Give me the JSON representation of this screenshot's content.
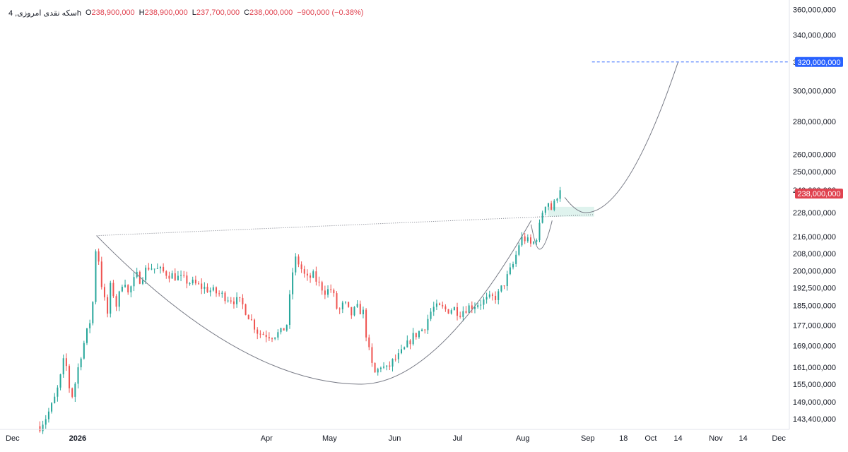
{
  "legend": {
    "symbol": "سکه نقدی امروزی, 4h",
    "open_label": "O",
    "open_value": "238,900,000",
    "high_label": "H",
    "high_value": "238,900,000",
    "low_label": "L",
    "low_value": "237,700,000",
    "close_label": "C",
    "close_value": "238,000,000",
    "change": "−900,000 (−0.38%)"
  },
  "colors": {
    "up": "#26a69a",
    "down": "#ef5350",
    "price_badge": "#e0424f",
    "target_badge": "#2962ff",
    "zone_fill": "#dff3ee",
    "pattern_line": "#787b86"
  },
  "chart_data": {
    "type": "candlestick",
    "title": "",
    "y_scale": "log",
    "ylim": [
      140000000,
      365000000
    ],
    "y_ticks": [
      "360,000,000",
      "340,000,000",
      "320,000,000",
      "300,000,000",
      "280,000,000",
      "260,000,000",
      "250,000,000",
      "240,000,000",
      "228,000,000",
      "216,000,000",
      "208,000,000",
      "200,000,000",
      "192,500,000",
      "185,000,000",
      "177,000,000",
      "169,000,000",
      "161,000,000",
      "155,000,000",
      "149,000,000",
      "143,400,000"
    ],
    "y_tick_values": [
      360000000,
      340000000,
      320000000,
      300000000,
      280000000,
      260000000,
      250000000,
      240000000,
      228000000,
      216000000,
      208000000,
      200000000,
      192500000,
      185000000,
      177000000,
      169000000,
      161000000,
      155000000,
      149000000,
      143400000
    ],
    "x_ticks": [
      {
        "label": "Dec",
        "date": "2025-12-01",
        "bold": false
      },
      {
        "label": "2026",
        "date": "2026-01-01",
        "bold": true
      },
      {
        "label": "Apr",
        "date": "2026-04-01",
        "bold": false
      },
      {
        "label": "May",
        "date": "2026-05-01",
        "bold": false
      },
      {
        "label": "Jun",
        "date": "2026-06-01",
        "bold": false
      },
      {
        "label": "Jul",
        "date": "2026-07-01",
        "bold": false
      },
      {
        "label": "Aug",
        "date": "2026-08-01",
        "bold": false
      },
      {
        "label": "Sep",
        "date": "2026-09-01",
        "bold": false
      },
      {
        "label": "18",
        "date": "2026-09-18",
        "bold": false
      },
      {
        "label": "Oct",
        "date": "2026-10-01",
        "bold": false
      },
      {
        "label": "14",
        "date": "2026-10-14",
        "bold": false
      },
      {
        "label": "Nov",
        "date": "2026-11-01",
        "bold": false
      },
      {
        "label": "14",
        "date": "2026-11-14",
        "bold": false
      },
      {
        "label": "Dec",
        "date": "2026-12-01",
        "bold": false
      }
    ],
    "price_path": [
      [
        "2025-12-14",
        141000000
      ],
      [
        "2025-12-17",
        144000000
      ],
      [
        "2025-12-20",
        148000000
      ],
      [
        "2025-12-22",
        152000000
      ],
      [
        "2025-12-24",
        158000000
      ],
      [
        "2025-12-26",
        166000000
      ],
      [
        "2025-12-27",
        158000000
      ],
      [
        "2025-12-29",
        150000000
      ],
      [
        "2025-12-31",
        156000000
      ],
      [
        "2026-01-02",
        164000000
      ],
      [
        "2026-01-04",
        170000000
      ],
      [
        "2026-01-06",
        176000000
      ],
      [
        "2026-01-08",
        182000000
      ],
      [
        "2026-01-09",
        204000000
      ],
      [
        "2026-01-10",
        214000000
      ],
      [
        "2026-01-12",
        196000000
      ],
      [
        "2026-01-14",
        186000000
      ],
      [
        "2026-01-15",
        180000000
      ],
      [
        "2026-01-17",
        196000000
      ],
      [
        "2026-01-19",
        184000000
      ],
      [
        "2026-01-21",
        190000000
      ],
      [
        "2026-01-23",
        198000000
      ],
      [
        "2026-01-25",
        190000000
      ],
      [
        "2026-01-27",
        194000000
      ],
      [
        "2026-01-29",
        198000000
      ],
      [
        "2026-01-31",
        196000000
      ],
      [
        "2026-02-02",
        200000000
      ],
      [
        "2026-02-04",
        202000000
      ],
      [
        "2026-03-20",
        186000000
      ],
      [
        "2026-03-24",
        180000000
      ],
      [
        "2026-03-28",
        174000000
      ],
      [
        "2026-04-03",
        173000000
      ],
      [
        "2026-04-08",
        174000000
      ],
      [
        "2026-04-11",
        178000000
      ],
      [
        "2026-04-13",
        198000000
      ],
      [
        "2026-04-15",
        206000000
      ],
      [
        "2026-04-18",
        200000000
      ],
      [
        "2026-04-20",
        196000000
      ],
      [
        "2026-04-23",
        198000000
      ],
      [
        "2026-04-26",
        194000000
      ],
      [
        "2026-04-29",
        191000000
      ],
      [
        "2026-05-02",
        192000000
      ],
      [
        "2026-05-05",
        182000000
      ],
      [
        "2026-05-08",
        186000000
      ],
      [
        "2026-05-11",
        181000000
      ],
      [
        "2026-05-14",
        184000000
      ],
      [
        "2026-05-17",
        182000000
      ],
      [
        "2026-05-19",
        170000000
      ],
      [
        "2026-05-21",
        162000000
      ],
      [
        "2026-05-23",
        158000000
      ],
      [
        "2026-05-25",
        162000000
      ],
      [
        "2026-05-28",
        160000000
      ],
      [
        "2026-05-31",
        163000000
      ],
      [
        "2026-06-03",
        165000000
      ],
      [
        "2026-06-06",
        168000000
      ],
      [
        "2026-06-09",
        172000000
      ],
      [
        "2026-06-12",
        174000000
      ],
      [
        "2026-06-15",
        176000000
      ],
      [
        "2026-06-19",
        184000000
      ],
      [
        "2026-06-23",
        184000000
      ],
      [
        "2026-06-26",
        183000000
      ],
      [
        "2026-06-29",
        184000000
      ],
      [
        "2026-07-02",
        182000000
      ],
      [
        "2026-07-05",
        184000000
      ],
      [
        "2026-07-08",
        185000000
      ],
      [
        "2026-07-11",
        186000000
      ],
      [
        "2026-07-14",
        187000000
      ],
      [
        "2026-07-17",
        188000000
      ],
      [
        "2026-07-20",
        189000000
      ],
      [
        "2026-07-24",
        196000000
      ],
      [
        "2026-07-28",
        204000000
      ],
      [
        "2026-07-30",
        212000000
      ],
      [
        "2026-08-01",
        216000000
      ],
      [
        "2026-08-03",
        214000000
      ],
      [
        "2026-08-05",
        212000000
      ],
      [
        "2026-08-07",
        214000000
      ],
      [
        "2026-08-09",
        221000000
      ],
      [
        "2026-08-11",
        232000000
      ],
      [
        "2026-08-13",
        234000000
      ],
      [
        "2026-08-15",
        229000000
      ],
      [
        "2026-08-17",
        236000000
      ],
      [
        "2026-08-19",
        242000000
      ],
      [
        "2026-08-20",
        238000000
      ]
    ],
    "candle_range_start": "2025-12-14",
    "candle_range_end": "2026-08-20",
    "last_price": 238000000,
    "last_price_label": "238,000,000",
    "target_price": 320000000,
    "target_price_label": "320,000,000",
    "neckline": {
      "start": [
        "2026-01-10",
        216500000
      ],
      "end": [
        "2026-09-04",
        227000000
      ]
    },
    "cup_curve": {
      "start": [
        "2026-01-10",
        216500000
      ],
      "bottom": [
        "2026-05-16",
        155000000
      ],
      "end": [
        "2026-08-05",
        224000000
      ]
    },
    "handle_curve": {
      "start": [
        "2026-08-05",
        222000000
      ],
      "bottom": [
        "2026-08-09",
        210000000
      ],
      "end": [
        "2026-08-15",
        224000000
      ]
    },
    "projection_curve": {
      "start": [
        "2026-08-21",
        236000000
      ],
      "bottom": [
        "2026-08-31",
        228000000
      ],
      "end": [
        "2026-10-14",
        320000000
      ]
    },
    "breakout_zone": {
      "x0": "2026-08-13",
      "x1": "2026-09-04",
      "y0": 226000000,
      "y1": 231000000
    },
    "target_line_start": "2026-09-03"
  }
}
